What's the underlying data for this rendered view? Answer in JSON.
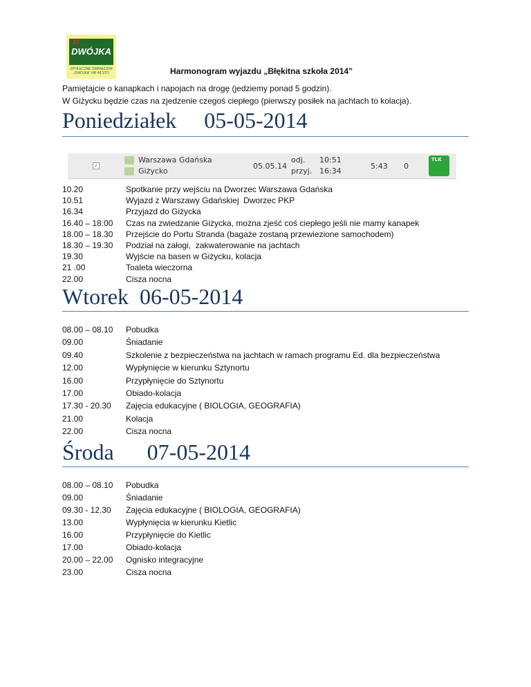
{
  "logo": {
    "top": "JG",
    "main": "DWÓJKA",
    "sub1": "SPOŁECZNE GIMNAZJUM",
    "sub2": "„DWÓJKA” NR 48 STO"
  },
  "title": "Harmonogram wyjazdu „Błękitna szkoła 2014”",
  "intro": [
    "Pamiętajcie o kanapkach i napojach na drogę (jedziemy ponad 5 godzin).",
    "W Giżycku będzie czas na zjedzenie czegoś ciepłego (pierwszy posiłek na jachtach to kolacja)."
  ],
  "train": {
    "from": "Warszawa Gdańska",
    "to": "Giżycko",
    "date": "05.05.14",
    "dep_label": "odj.",
    "arr_label": "przyj.",
    "dep": "10:51",
    "arr": "16:34",
    "duration": "5:43",
    "changes": "0",
    "carrier": "TLK",
    "checked": true
  },
  "days": [
    {
      "name": "Poniedziałek",
      "date": "05-05-2014",
      "items": [
        [
          "10.20",
          "Spotkanie przy wejściu na Dworzec Warszawa Gdańska"
        ],
        [
          "10.51",
          "Wyjazd z Warszawy Gdańskiej  Dworzec PKP"
        ],
        [
          "16.34",
          "Przyjazd do Giżycka"
        ],
        [
          "16.40 – 18.00",
          "Czas na zwiedzanie Giżycka, można zjeść coś ciepłego jeśli nie mamy kanapek"
        ],
        [
          "18.00 – 18.30",
          "Przejście do Portu Stranda (bagaże zostaną przewiezione samochodem)"
        ],
        [
          "18.30 – 19.30",
          "Podział na załogi,  zakwaterowanie na jachtach"
        ],
        [
          "19.30",
          "Wyjście na basen w Giżycku, kolacja"
        ],
        [
          "21 .00",
          "Toaleta wieczorna"
        ],
        [
          "22.00",
          "Cisza nocna"
        ]
      ]
    },
    {
      "name": "Wtorek",
      "date": "06-05-2014",
      "items": [
        [
          "08.00 – 08.10",
          "Pobudka"
        ],
        [
          "09.00",
          "Śniadanie"
        ],
        [
          "09.40",
          "Szkolenie z bezpieczeństwa na jachtach w ramach programu Ed. dla bezpieczeństwa"
        ],
        [
          "12.00",
          "Wypłynięcie w kierunku Sztynortu"
        ],
        [
          "16.00",
          "Przypłynięcie do Sztynortu"
        ],
        [
          "17.00",
          "Obiado-kolacja"
        ],
        [
          "17.30 - 20.30",
          "Zajęcia edukacyjne ( BIOLOGIA, GEOGRAFIA)"
        ],
        [
          "21.00",
          "Kolacja"
        ],
        [
          "22.00",
          "Cisza nocna"
        ]
      ]
    },
    {
      "name": "Środa",
      "date": "07-05-2014",
      "items": [
        [
          "08.00 – 08.10",
          "Pobudka"
        ],
        [
          "09.00",
          "Śniadanie"
        ],
        [
          "09.30 - 12.30",
          "Zajęcia edukacyjne ( BIOLOGIA, GEOGRAFIA)"
        ],
        [
          "13.00",
          "Wypłynięcia w kierunku Kietlic"
        ],
        [
          "16.00",
          "Przypłynięcie do Kietlic"
        ],
        [
          "17.00",
          "Obiado-kolacja"
        ],
        [
          "20.00 – 22.00",
          "Ognisko integracyjne"
        ],
        [
          "23.00",
          "Cisza nocna"
        ]
      ]
    }
  ]
}
